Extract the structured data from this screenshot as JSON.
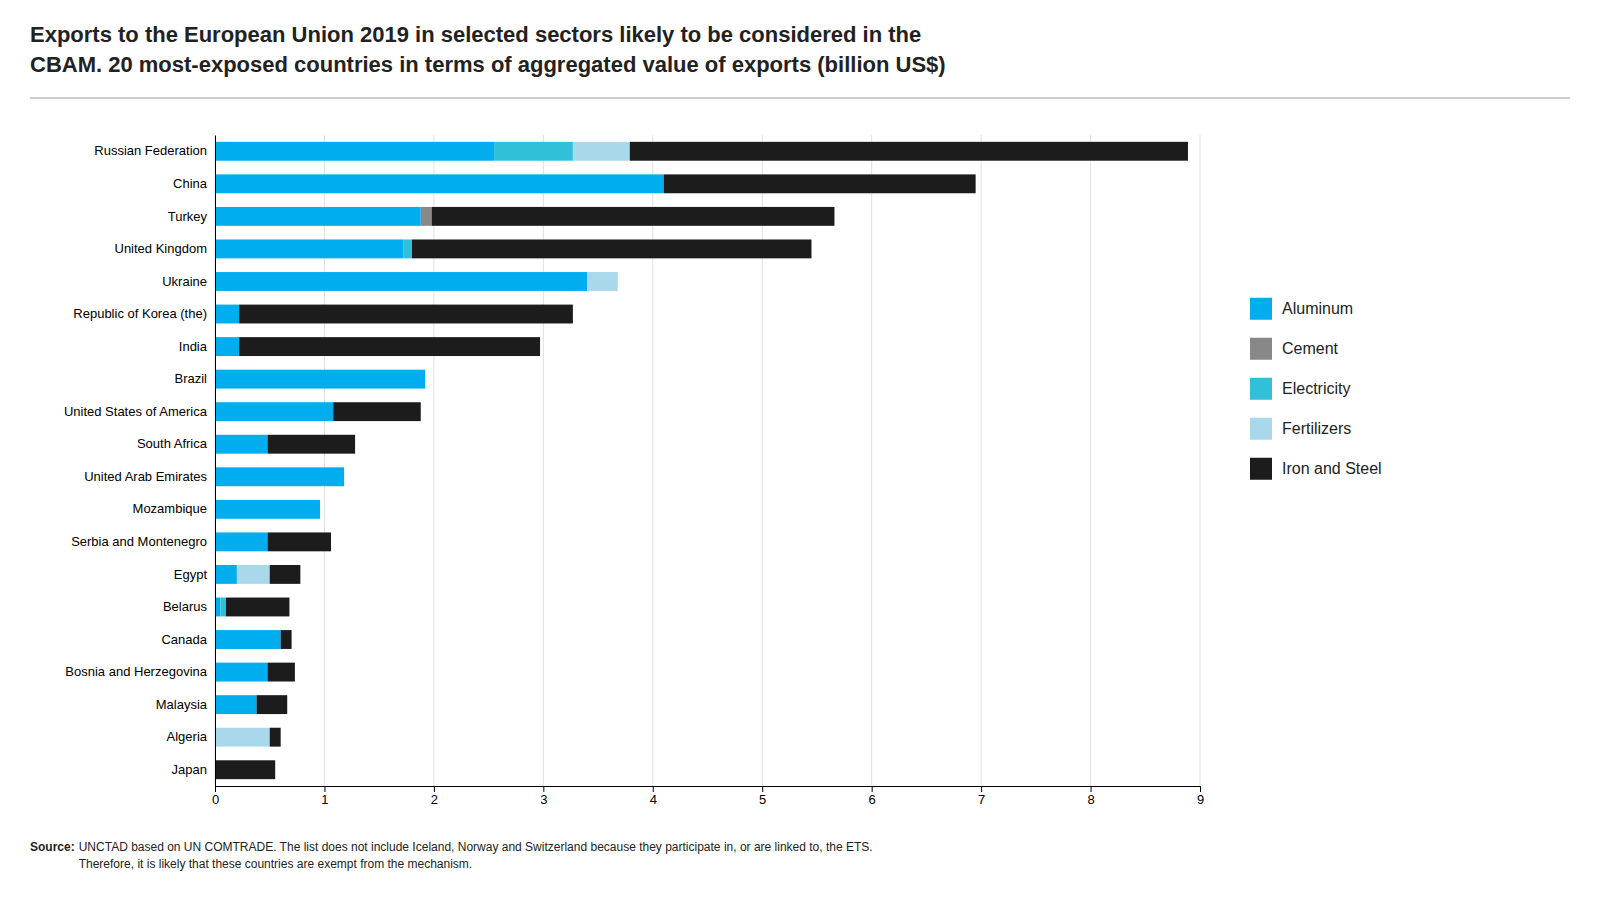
{
  "chart_data": {
    "type": "bar",
    "orientation": "horizontal",
    "stacked": true,
    "title": "Exports to the European Union 2019 in selected sectors likely to be considered in the\nCBAM. 20 most-exposed countries in terms of aggregated value of exports (billion US$)",
    "annotations": [
      "Source:",
      "UNCTAD based on UN COMTRADE. The list does not include Iceland, Norway and Switzerland because they participate in, or are linked to, the ETS.\nTherefore, it is likely that these countries are exempt from the mechanism."
    ],
    "categories": [
      "Russian Federation",
      "China",
      "Turkey",
      "United Kingdom",
      "Ukraine",
      "Republic of Korea (the)",
      "India",
      "Brazil",
      "United States of America",
      "South Africa",
      "United Arab Emirates",
      "Mozambique",
      "Serbia and Montenegro",
      "Egypt",
      "Belarus",
      "Canada",
      "Bosnia and Herzegovina",
      "Malaysia",
      "Algeria",
      "Japan"
    ],
    "series": [
      {
        "name": "Aluminum",
        "color": "#00ADEF",
        "values": [
          2.55,
          4.1,
          1.88,
          1.72,
          3.4,
          0.22,
          0.22,
          1.92,
          1.08,
          0.48,
          1.18,
          0.96,
          0.48,
          0.2,
          0.05,
          0.6,
          0.48,
          0.38,
          0.0,
          0.0
        ]
      },
      {
        "name": "Cement",
        "color": "#888888",
        "values": [
          0.0,
          0.0,
          0.1,
          0.0,
          0.0,
          0.0,
          0.0,
          0.0,
          0.0,
          0.0,
          0.0,
          0.0,
          0.0,
          0.0,
          0.0,
          0.0,
          0.0,
          0.0,
          0.0,
          0.0
        ]
      },
      {
        "name": "Electricity",
        "color": "#30C0D8",
        "values": [
          0.72,
          0.0,
          0.0,
          0.08,
          0.0,
          0.0,
          0.0,
          0.0,
          0.0,
          0.0,
          0.0,
          0.0,
          0.0,
          0.0,
          0.05,
          0.0,
          0.0,
          0.0,
          0.0,
          0.0
        ]
      },
      {
        "name": "Fertilizers",
        "color": "#A8D8EA",
        "values": [
          0.52,
          0.0,
          0.0,
          0.0,
          0.28,
          0.0,
          0.0,
          0.0,
          0.0,
          0.0,
          0.0,
          0.0,
          0.0,
          0.3,
          0.0,
          0.0,
          0.0,
          0.0,
          0.5,
          0.0
        ]
      },
      {
        "name": "Iron and Steel",
        "color": "#1C1C1C",
        "values": [
          5.1,
          2.85,
          3.68,
          3.65,
          0.0,
          3.05,
          2.75,
          0.0,
          0.8,
          0.8,
          0.0,
          0.0,
          0.58,
          0.28,
          0.58,
          0.1,
          0.25,
          0.28,
          0.1,
          0.55
        ]
      }
    ],
    "xlim": [
      0,
      9
    ],
    "xticks": [
      0,
      1,
      2,
      3,
      4,
      5,
      6,
      7,
      8,
      9
    ],
    "grid": true,
    "legend": "right"
  }
}
